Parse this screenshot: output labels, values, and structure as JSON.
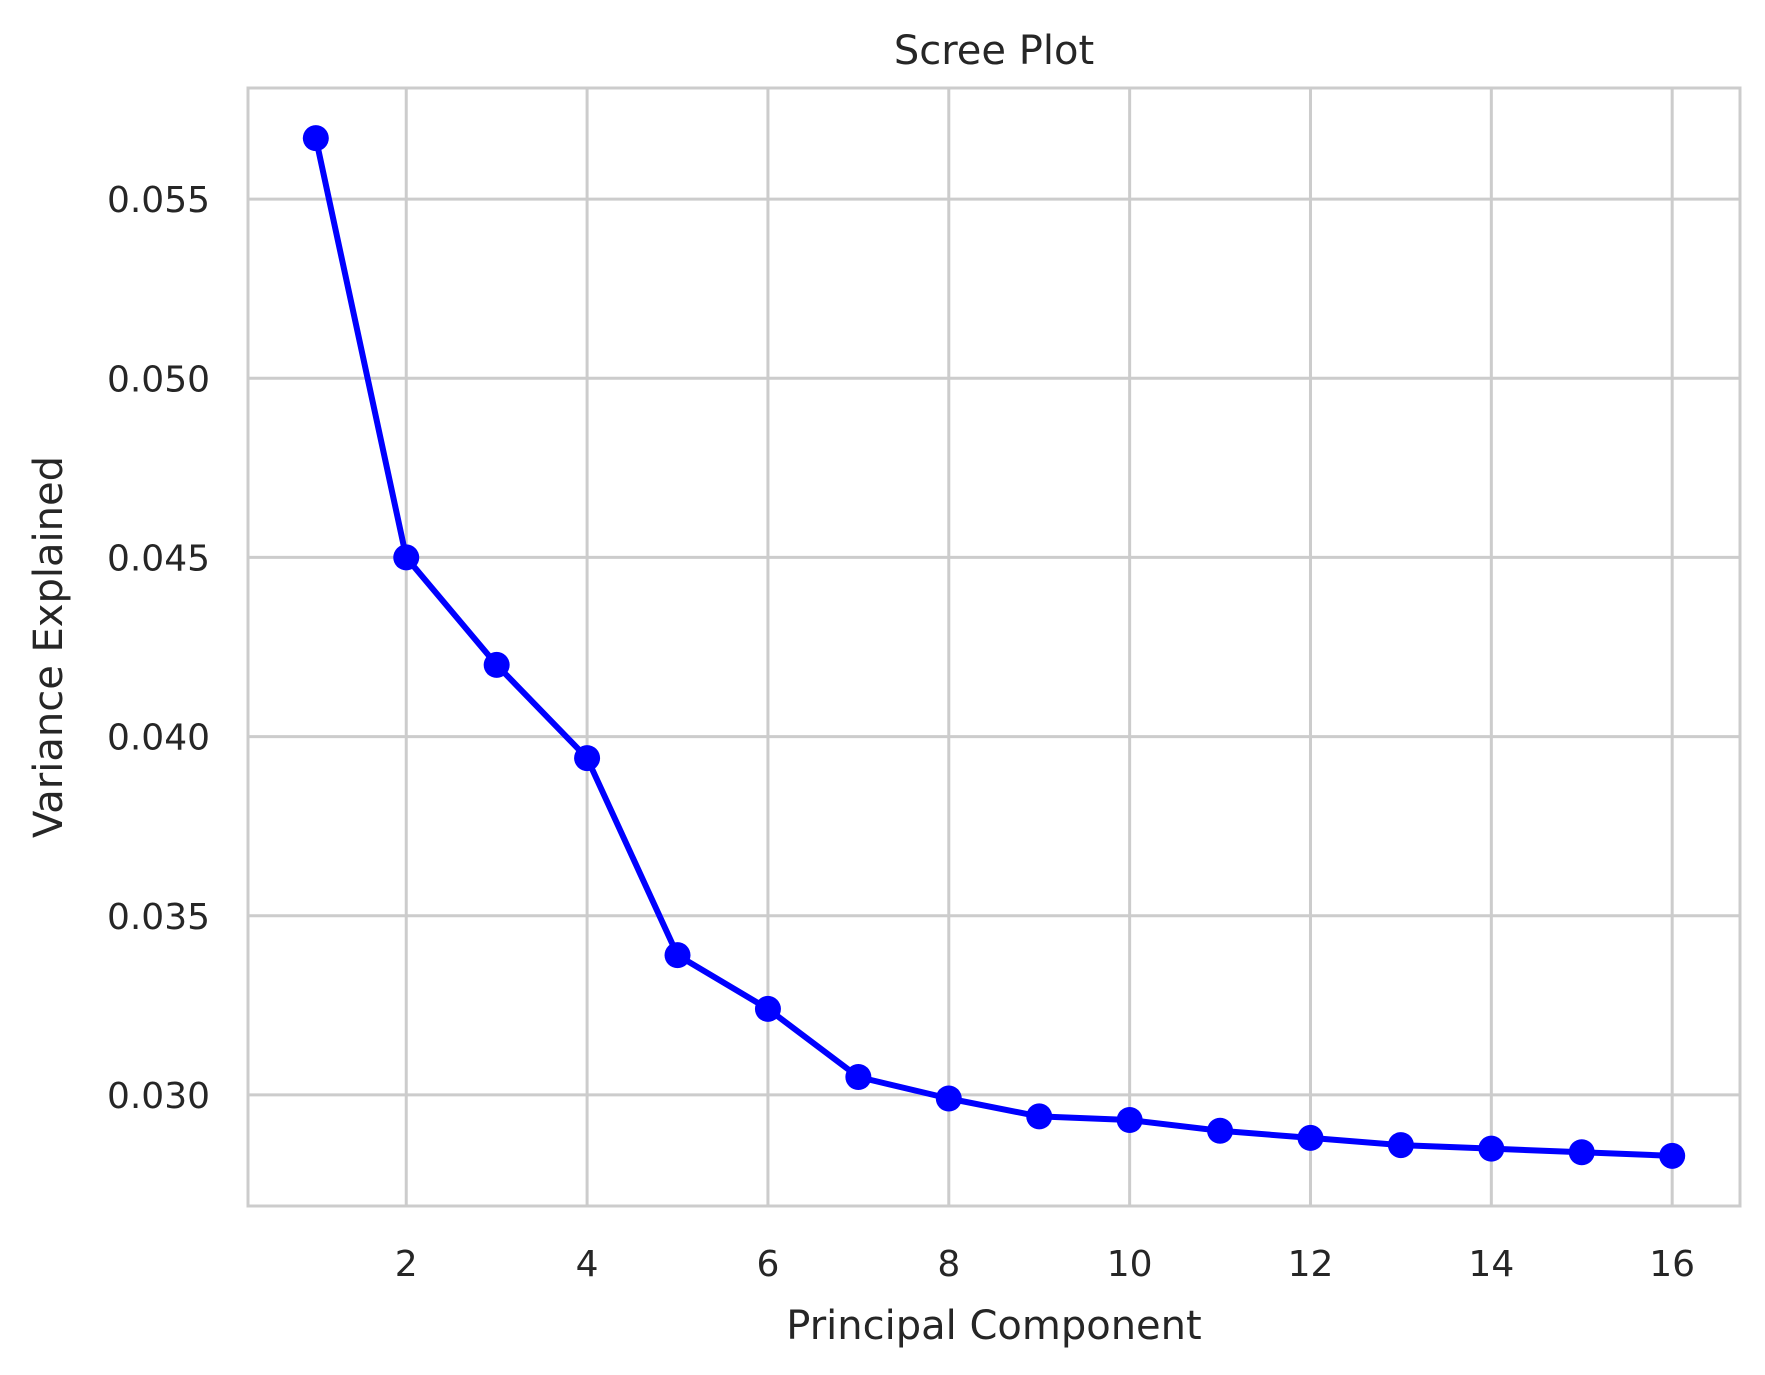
{
  "chart_data": {
    "type": "line",
    "title": "Scree Plot",
    "xlabel": "Principal Component",
    "ylabel": "Variance Explained",
    "x": [
      1,
      2,
      3,
      4,
      5,
      6,
      7,
      8,
      9,
      10,
      11,
      12,
      13,
      14,
      15,
      16
    ],
    "series": [
      {
        "values": [
          0.0567,
          0.045,
          0.042,
          0.0394,
          0.0339,
          0.0324,
          0.0305,
          0.0299,
          0.0294,
          0.0293,
          0.029,
          0.0288,
          0.0286,
          0.0285,
          0.0284,
          0.0283
        ],
        "color": "#0000ff",
        "marker": "circle"
      }
    ],
    "xlim": [
      0.25,
      16.75
    ],
    "ylim": [
      0.0269,
      0.0581
    ],
    "xticks": [
      2,
      4,
      6,
      8,
      10,
      12,
      14,
      16
    ],
    "xtick_labels": [
      "2",
      "4",
      "6",
      "8",
      "10",
      "12",
      "14",
      "16"
    ],
    "yticks": [
      0.03,
      0.035,
      0.04,
      0.045,
      0.05,
      0.055
    ],
    "ytick_labels": [
      "0.030",
      "0.035",
      "0.040",
      "0.045",
      "0.050",
      "0.055"
    ],
    "grid": true,
    "colors": {
      "grid": "#cccccc",
      "frame": "#cccccc",
      "text": "#262626"
    }
  }
}
